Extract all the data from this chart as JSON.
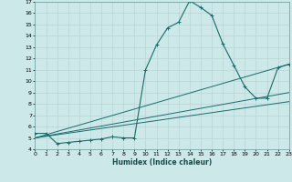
{
  "title": "",
  "xlabel": "Humidex (Indice chaleur)",
  "ylabel": "",
  "background_color": "#cce8e8",
  "grid_color": "#b8d4d4",
  "line_color": "#1a6b6b",
  "xlim": [
    0,
    23
  ],
  "ylim": [
    4,
    17
  ],
  "xticks": [
    0,
    1,
    2,
    3,
    4,
    5,
    6,
    7,
    8,
    9,
    10,
    11,
    12,
    13,
    14,
    15,
    16,
    17,
    18,
    19,
    20,
    21,
    22,
    23
  ],
  "yticks": [
    4,
    5,
    6,
    7,
    8,
    9,
    10,
    11,
    12,
    13,
    14,
    15,
    16,
    17
  ],
  "curve1_x": [
    0,
    1,
    2,
    3,
    4,
    5,
    6,
    7,
    8,
    9,
    10,
    11,
    12,
    13,
    14,
    15,
    16,
    17,
    18,
    19,
    20,
    21,
    22,
    23
  ],
  "curve1_y": [
    5.4,
    5.4,
    4.5,
    4.6,
    4.7,
    4.8,
    4.9,
    5.1,
    5.0,
    5.0,
    11.0,
    13.2,
    14.7,
    15.2,
    17.1,
    16.5,
    15.8,
    13.3,
    11.4,
    9.5,
    8.5,
    8.5,
    11.2,
    11.5
  ],
  "line1_x": [
    0,
    23
  ],
  "line1_y": [
    5.0,
    11.5
  ],
  "line2_x": [
    0,
    23
  ],
  "line2_y": [
    5.0,
    9.0
  ],
  "line3_x": [
    0,
    23
  ],
  "line3_y": [
    5.0,
    8.2
  ]
}
